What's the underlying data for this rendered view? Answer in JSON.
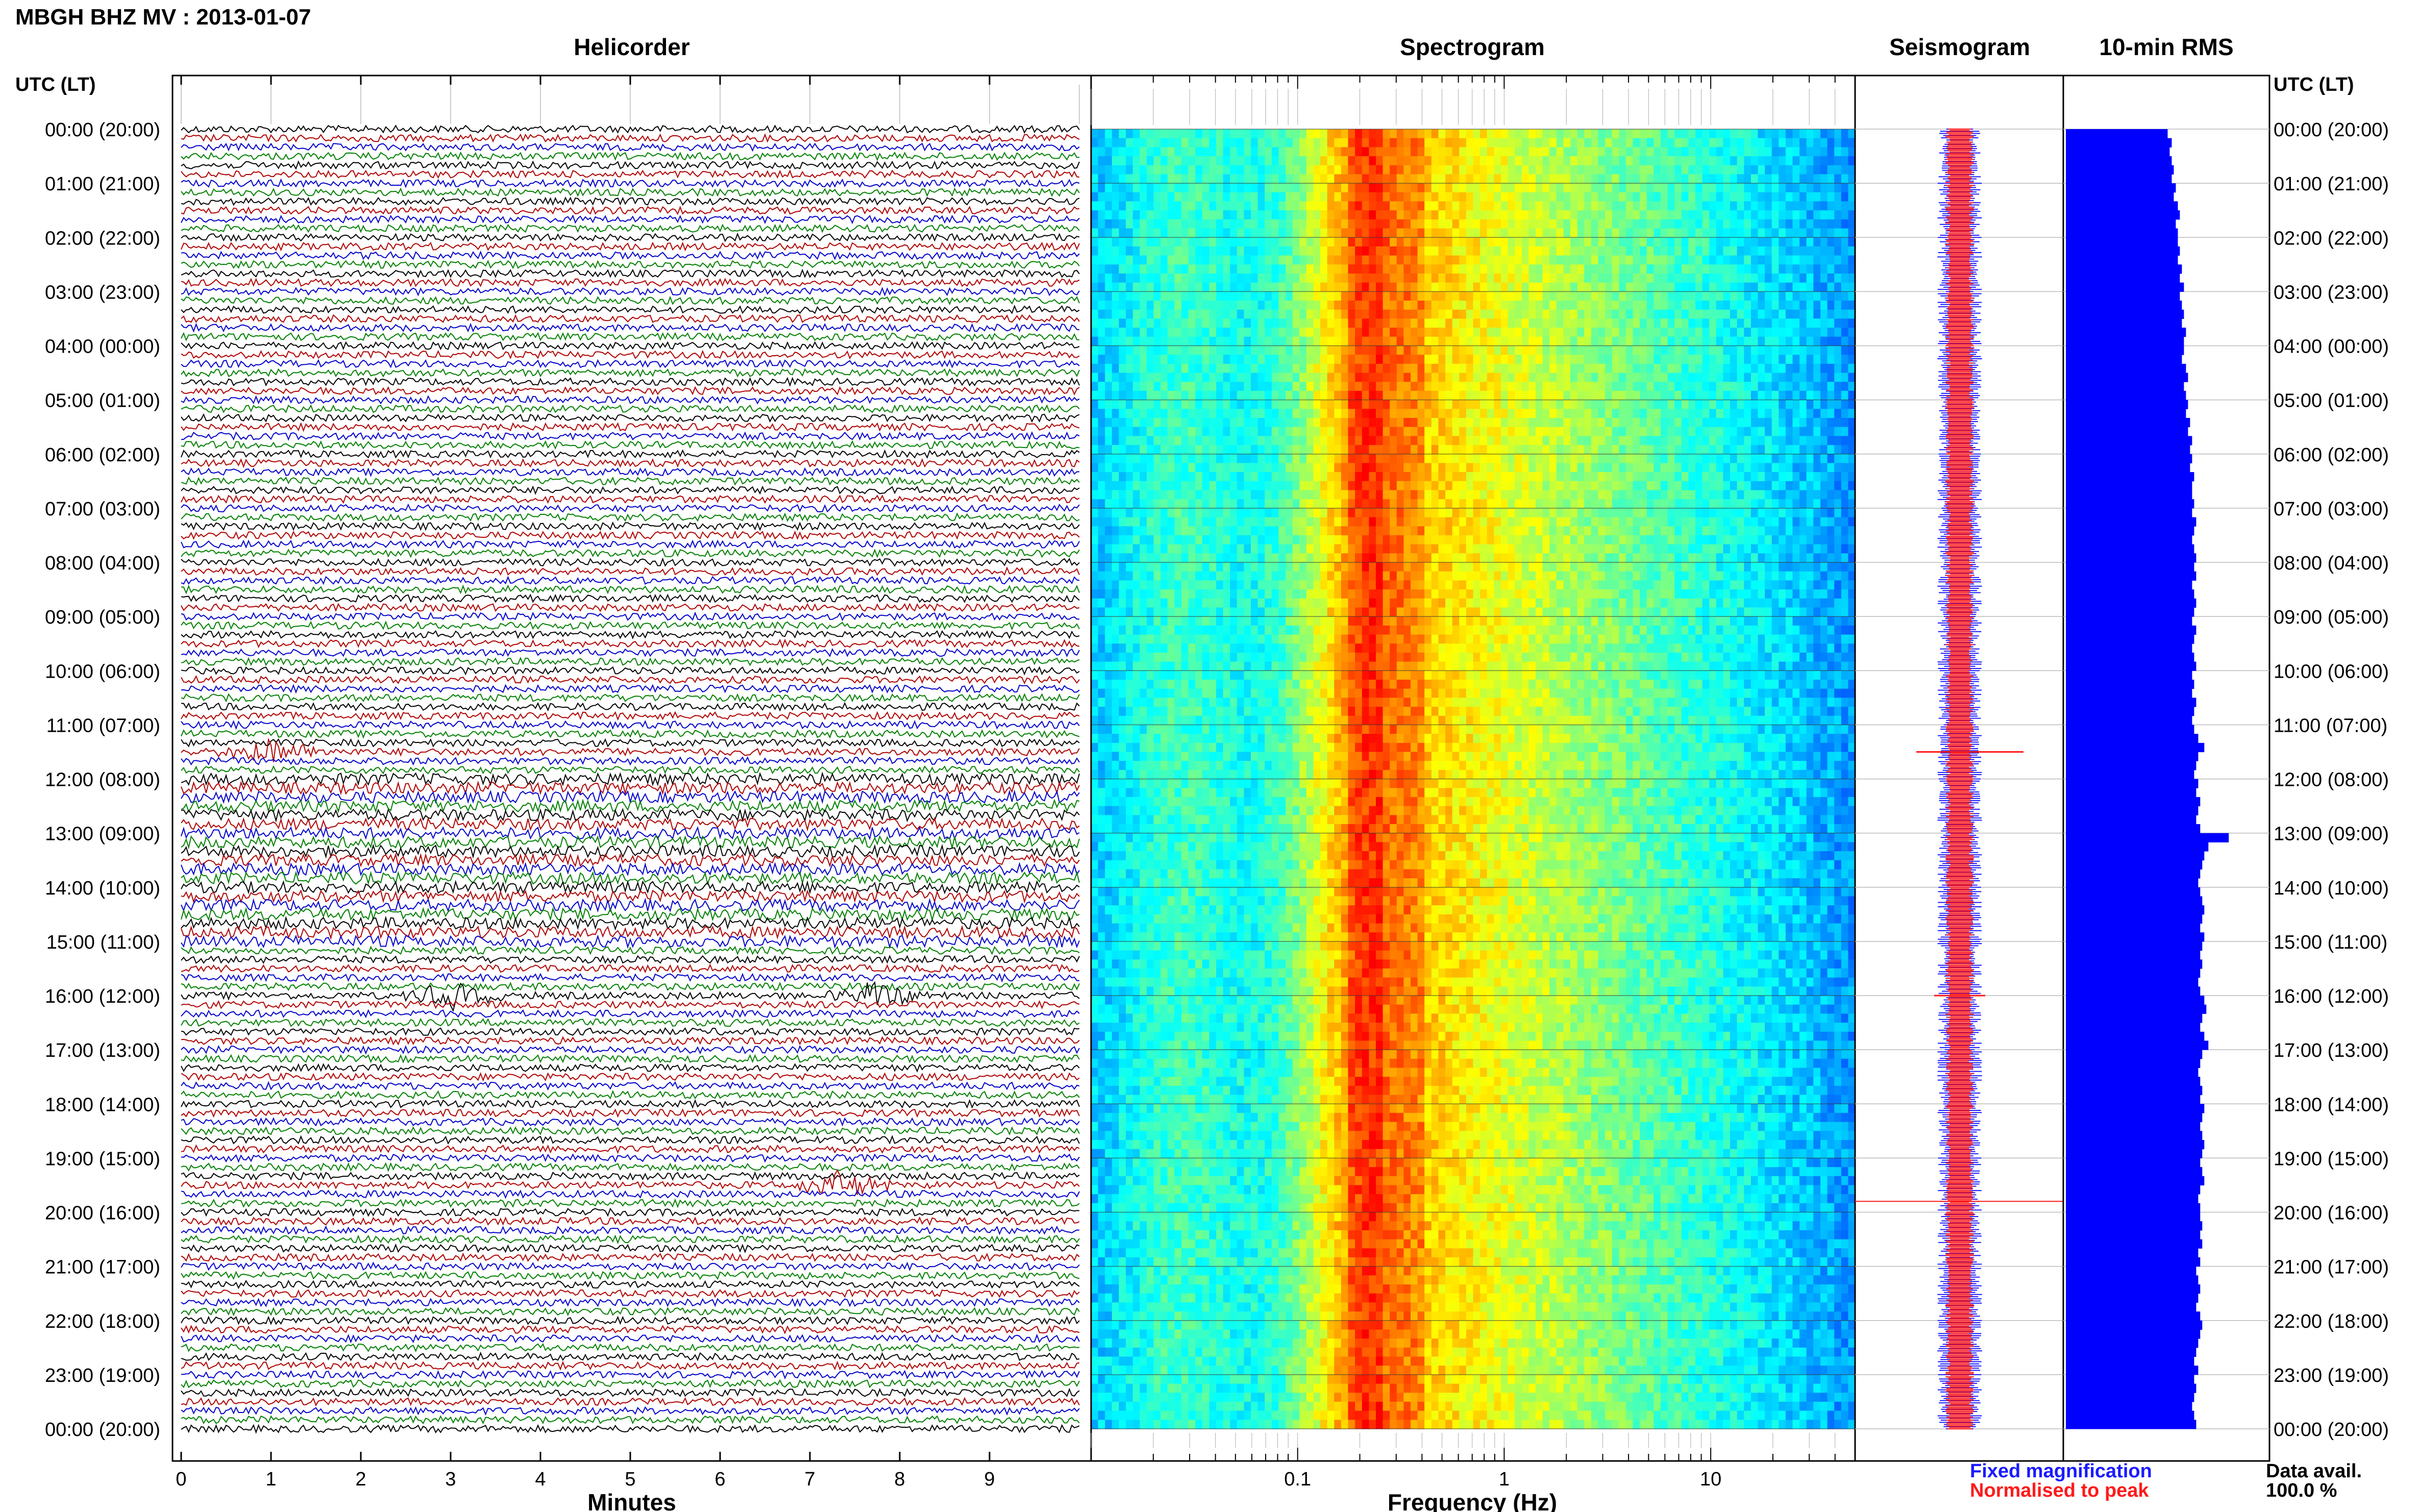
{
  "page": {
    "title": "MBGH BHZ MV : 2013-01-07",
    "utc_header_left": "UTC (LT)",
    "utc_header_right": "UTC (LT)"
  },
  "panels": {
    "helicorder": "Helicorder",
    "spectrogram": "Spectrogram",
    "seismogram": "Seismogram",
    "rms": "10-min RMS"
  },
  "time_labels": [
    "00:00 (20:00)",
    "01:00 (21:00)",
    "02:00 (22:00)",
    "03:00 (23:00)",
    "04:00 (00:00)",
    "05:00 (01:00)",
    "06:00 (02:00)",
    "07:00 (03:00)",
    "08:00 (04:00)",
    "09:00 (05:00)",
    "10:00 (06:00)",
    "11:00 (07:00)",
    "12:00 (08:00)",
    "13:00 (09:00)",
    "14:00 (10:00)",
    "15:00 (11:00)",
    "16:00 (12:00)",
    "17:00 (13:00)",
    "18:00 (14:00)",
    "19:00 (15:00)",
    "20:00 (16:00)",
    "21:00 (17:00)",
    "22:00 (18:00)",
    "23:00 (19:00)",
    "00:00 (20:00)"
  ],
  "legend": {
    "fixed": "Fixed magnification",
    "normalised": "Normalised to peak",
    "fixed_color": "#1a1aff",
    "normalised_color": "#ff1a1a"
  },
  "data_avail": {
    "label": "Data avail.",
    "value": "100.0 %"
  },
  "chart_data": [
    {
      "type": "line",
      "name": "helicorder",
      "xlabel": "Minutes",
      "x_ticks": [
        "0",
        "1",
        "2",
        "3",
        "4",
        "5",
        "6",
        "7",
        "8",
        "9"
      ],
      "xlim": [
        0,
        10
      ],
      "trace_colors": [
        "#000000",
        "#b00000",
        "#0000cc",
        "#008000"
      ],
      "events": [
        {
          "hour": 11.5,
          "minute": 1.0
        },
        {
          "hour": 16.0,
          "minute": 3.0
        },
        {
          "hour": 16.0,
          "minute": 7.7
        },
        {
          "hour": 19.5,
          "minute": 7.3
        }
      ]
    },
    {
      "type": "heatmap",
      "name": "spectrogram",
      "xlabel": "Frequency (Hz)",
      "x_scale": "log",
      "x_ticks": [
        "0.1",
        "1",
        "10"
      ],
      "xlim": [
        0.01,
        50
      ],
      "colormap": "jet",
      "peak_band_hz": [
        0.18,
        0.35
      ]
    },
    {
      "type": "line",
      "name": "seismogram",
      "series": [
        {
          "name": "Fixed magnification",
          "color": "#1a1aff"
        },
        {
          "name": "Normalised to peak",
          "color": "#ff1a1a"
        }
      ]
    },
    {
      "type": "bar",
      "name": "rms",
      "orientation": "horizontal",
      "bar_color": "#0000ff",
      "values": [
        0.5,
        0.52,
        0.51,
        0.52,
        0.53,
        0.52,
        0.54,
        0.53,
        0.55,
        0.56,
        0.54,
        0.55,
        0.55,
        0.56,
        0.55,
        0.57,
        0.56,
        0.58,
        0.56,
        0.57,
        0.58,
        0.57,
        0.59,
        0.58,
        0.58,
        0.57,
        0.59,
        0.6,
        0.58,
        0.59,
        0.6,
        0.59,
        0.61,
        0.6,
        0.62,
        0.61,
        0.62,
        0.61,
        0.63,
        0.62,
        0.62,
        0.63,
        0.62,
        0.64,
        0.63,
        0.62,
        0.63,
        0.64,
        0.63,
        0.64,
        0.62,
        0.63,
        0.64,
        0.63,
        0.62,
        0.64,
        0.63,
        0.62,
        0.63,
        0.64,
        0.62,
        0.63,
        0.62,
        0.64,
        0.63,
        0.62,
        0.63,
        0.65,
        0.68,
        0.65,
        0.64,
        0.63,
        0.65,
        0.64,
        0.66,
        0.65,
        0.64,
        0.66,
        0.8,
        0.7,
        0.68,
        0.67,
        0.66,
        0.65,
        0.66,
        0.67,
        0.68,
        0.67,
        0.66,
        0.68,
        0.67,
        0.66,
        0.67,
        0.66,
        0.65,
        0.66,
        0.68,
        0.69,
        0.67,
        0.66,
        0.68,
        0.7,
        0.67,
        0.66,
        0.65,
        0.66,
        0.67,
        0.66,
        0.68,
        0.67,
        0.66,
        0.67,
        0.68,
        0.67,
        0.66,
        0.67,
        0.68,
        0.66,
        0.65,
        0.66,
        0.66,
        0.67,
        0.66,
        0.67,
        0.65,
        0.66,
        0.64,
        0.65,
        0.66,
        0.65,
        0.64,
        0.66,
        0.67,
        0.66,
        0.65,
        0.64,
        0.63,
        0.65,
        0.63,
        0.64,
        0.63,
        0.62,
        0.63,
        0.64,
        0.63,
        0.62,
        0.63,
        0.62,
        0.61,
        0.62,
        0.61,
        0.62,
        0.61,
        0.6,
        0.61,
        0.6
      ]
    }
  ]
}
